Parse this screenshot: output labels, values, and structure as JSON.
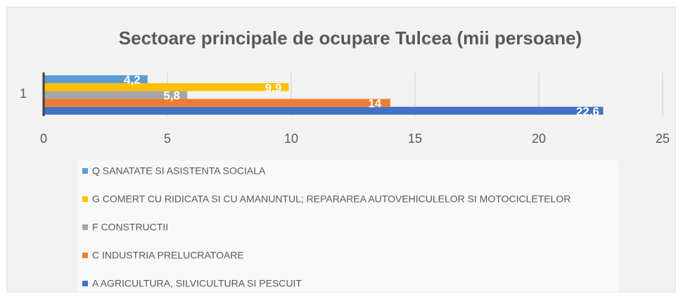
{
  "chart_data": {
    "type": "hbar",
    "title": "Sectoare principale de ocupare Tulcea (mii persoane)",
    "categories": [
      "1"
    ],
    "series": [
      {
        "name": "A AGRICULTURA, SILVICULTURA SI PESCUIT",
        "color": "#4472c4",
        "values": [
          22.6
        ],
        "value_labels": [
          "22,6"
        ]
      },
      {
        "name": "C INDUSTRIA PRELUCRATOARE",
        "color": "#ed7d31",
        "values": [
          14
        ],
        "value_labels": [
          "14"
        ]
      },
      {
        "name": "F CONSTRUCTII",
        "color": "#a5a5a5",
        "values": [
          5.8
        ],
        "value_labels": [
          "5,8"
        ]
      },
      {
        "name": "G COMERT CU RIDICATA SI CU AMANUNTUL; REPARAREA AUTOVEHICULELOR SI MOTOCICLETELOR",
        "color": "#ffc000",
        "values": [
          9.9
        ],
        "value_labels": [
          "9,9"
        ]
      },
      {
        "name": "Q SANATATE SI ASISTENTA SOCIALA",
        "color": "#5b9bd5",
        "values": [
          4.2
        ],
        "value_labels": [
          "4,2"
        ]
      }
    ],
    "xlim": [
      0,
      25
    ],
    "xticks": [
      0,
      5,
      10,
      15,
      20,
      25
    ],
    "grid": true,
    "legend": "bottom"
  }
}
